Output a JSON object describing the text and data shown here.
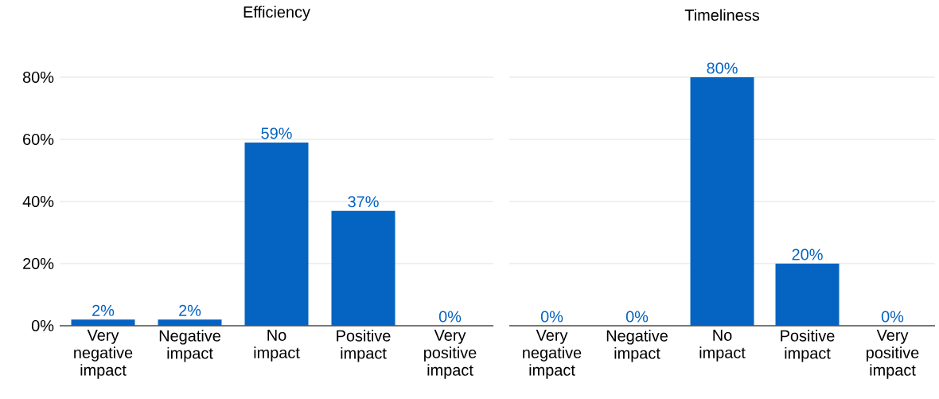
{
  "chart_data": [
    {
      "type": "bar",
      "title": "Efficiency",
      "categories": [
        "Very negative impact",
        "Negative impact",
        "No impact",
        "Positive impact",
        "Very positive impact"
      ],
      "values": [
        2,
        2,
        59,
        37,
        0
      ],
      "value_labels": [
        "2%",
        "2%",
        "59%",
        "37%",
        "0%"
      ],
      "color": "#0563c1",
      "ylim": [
        0,
        80
      ],
      "yticks": [
        {
          "value": 0,
          "label": "0%"
        },
        {
          "value": 20,
          "label": "20%"
        },
        {
          "value": 40,
          "label": "40%"
        },
        {
          "value": 60,
          "label": "60%"
        },
        {
          "value": 80,
          "label": "80%"
        }
      ],
      "grid": "y"
    },
    {
      "type": "bar",
      "title": "Timeliness",
      "categories": [
        "Very negative impact",
        "Negative impact",
        "No impact",
        "Positive impact",
        "Very positive impact"
      ],
      "values": [
        0,
        0,
        80,
        20,
        0
      ],
      "value_labels": [
        "0%",
        "0%",
        "80%",
        "20%",
        "0%"
      ],
      "color": "#0563c1",
      "ylim": [
        0,
        80
      ],
      "yticks": [
        0,
        20,
        40,
        60,
        80
      ],
      "grid": "y",
      "tick_labels": "x"
    }
  ]
}
